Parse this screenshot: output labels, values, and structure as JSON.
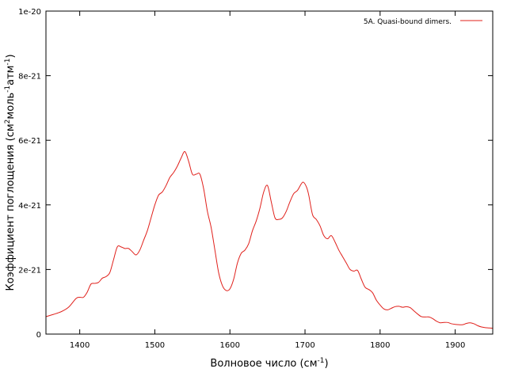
{
  "chart_data": {
    "type": "line",
    "xlabel_main": "Волновое число (см",
    "xlabel_sup": "-1",
    "xlabel_end": ")",
    "ylabel_parts": {
      "p1": "Коэффициент поглощения (см",
      "s1": "2",
      "p2": "моль",
      "s2": "-1",
      "p3": "атм",
      "s3": "-1",
      "p4": ")"
    },
    "xlim": [
      1355,
      1950
    ],
    "ylim": [
      0,
      1e-20
    ],
    "x_ticks": [
      1400,
      1500,
      1600,
      1700,
      1800,
      1900
    ],
    "x_tick_labels": [
      "1400",
      "1500",
      "1600",
      "1700",
      "1800",
      "1900"
    ],
    "y_ticks": [
      0,
      2e-21,
      4e-21,
      6e-21,
      8e-21,
      1e-20
    ],
    "y_tick_labels": [
      "0",
      "2e-21",
      "4e-21",
      "6e-21",
      "8e-21",
      "1e-20"
    ],
    "grid": false,
    "legend_position": "top-right",
    "series": [
      {
        "name": "5A. Quasi-bound dimers.",
        "color": "#e0201b",
        "x": [
          1355,
          1365,
          1375,
          1385,
          1395,
          1400,
          1405,
          1410,
          1415,
          1420,
          1425,
          1430,
          1435,
          1440,
          1445,
          1450,
          1455,
          1460,
          1465,
          1470,
          1475,
          1480,
          1485,
          1490,
          1495,
          1500,
          1505,
          1510,
          1515,
          1520,
          1525,
          1530,
          1535,
          1540,
          1545,
          1550,
          1555,
          1560,
          1565,
          1570,
          1575,
          1580,
          1585,
          1590,
          1595,
          1600,
          1605,
          1610,
          1615,
          1620,
          1625,
          1630,
          1635,
          1640,
          1645,
          1650,
          1655,
          1660,
          1665,
          1670,
          1675,
          1680,
          1685,
          1690,
          1695,
          1698,
          1702,
          1705,
          1710,
          1715,
          1720,
          1725,
          1730,
          1735,
          1740,
          1745,
          1750,
          1755,
          1760,
          1765,
          1770,
          1775,
          1780,
          1785,
          1790,
          1795,
          1800,
          1805,
          1810,
          1815,
          1820,
          1825,
          1830,
          1835,
          1840,
          1845,
          1850,
          1855,
          1860,
          1865,
          1870,
          1875,
          1880,
          1885,
          1890,
          1895,
          1900,
          1905,
          1910,
          1915,
          1920,
          1925,
          1930,
          1935,
          1940,
          1945,
          1950
        ],
        "y": [
          5.4e-22,
          6.1e-22,
          6.9e-22,
          8.3e-22,
          1.1e-21,
          1.14e-21,
          1.14e-21,
          1.3e-21,
          1.55e-21,
          1.57e-21,
          1.6e-21,
          1.73e-21,
          1.78e-21,
          1.9e-21,
          2.3e-21,
          2.7e-21,
          2.7e-21,
          2.65e-21,
          2.65e-21,
          2.55e-21,
          2.45e-21,
          2.6e-21,
          2.9e-21,
          3.2e-21,
          3.6e-21,
          4e-21,
          4.3e-21,
          4.4e-21,
          4.6e-21,
          4.85e-21,
          5e-21,
          5.2e-21,
          5.45e-21,
          5.65e-21,
          5.35e-21,
          4.95e-21,
          4.95e-21,
          4.95e-21,
          4.5e-21,
          3.8e-21,
          3.3e-21,
          2.6e-21,
          1.9e-21,
          1.5e-21,
          1.35e-21,
          1.4e-21,
          1.7e-21,
          2.2e-21,
          2.5e-21,
          2.6e-21,
          2.8e-21,
          3.2e-21,
          3.5e-21,
          3.9e-21,
          4.4e-21,
          4.6e-21,
          4.1e-21,
          3.6e-21,
          3.55e-21,
          3.6e-21,
          3.8e-21,
          4.1e-21,
          4.35e-21,
          4.45e-21,
          4.65e-21,
          4.7e-21,
          4.55e-21,
          4.3e-21,
          3.7e-21,
          3.55e-21,
          3.35e-21,
          3.05e-21,
          2.95e-21,
          3.05e-21,
          2.85e-21,
          2.6e-21,
          2.4e-21,
          2.2e-21,
          2e-21,
          1.95e-21,
          1.97e-21,
          1.7e-21,
          1.45e-21,
          1.38e-21,
          1.28e-21,
          1.05e-21,
          9e-22,
          7.8e-22,
          7.5e-22,
          8e-22,
          8.5e-22,
          8.6e-22,
          8.3e-22,
          8.5e-22,
          8.2e-22,
          7.2e-22,
          6.2e-22,
          5.4e-22,
          5.3e-22,
          5.3e-22,
          4.8e-22,
          4e-22,
          3.5e-22,
          3.6e-22,
          3.6e-22,
          3.2e-22,
          3e-22,
          2.9e-22,
          2.9e-22,
          3.3e-22,
          3.5e-22,
          3.2e-22,
          2.6e-22,
          2.2e-22,
          2e-22,
          1.9e-22,
          1.8e-22
        ]
      }
    ]
  }
}
